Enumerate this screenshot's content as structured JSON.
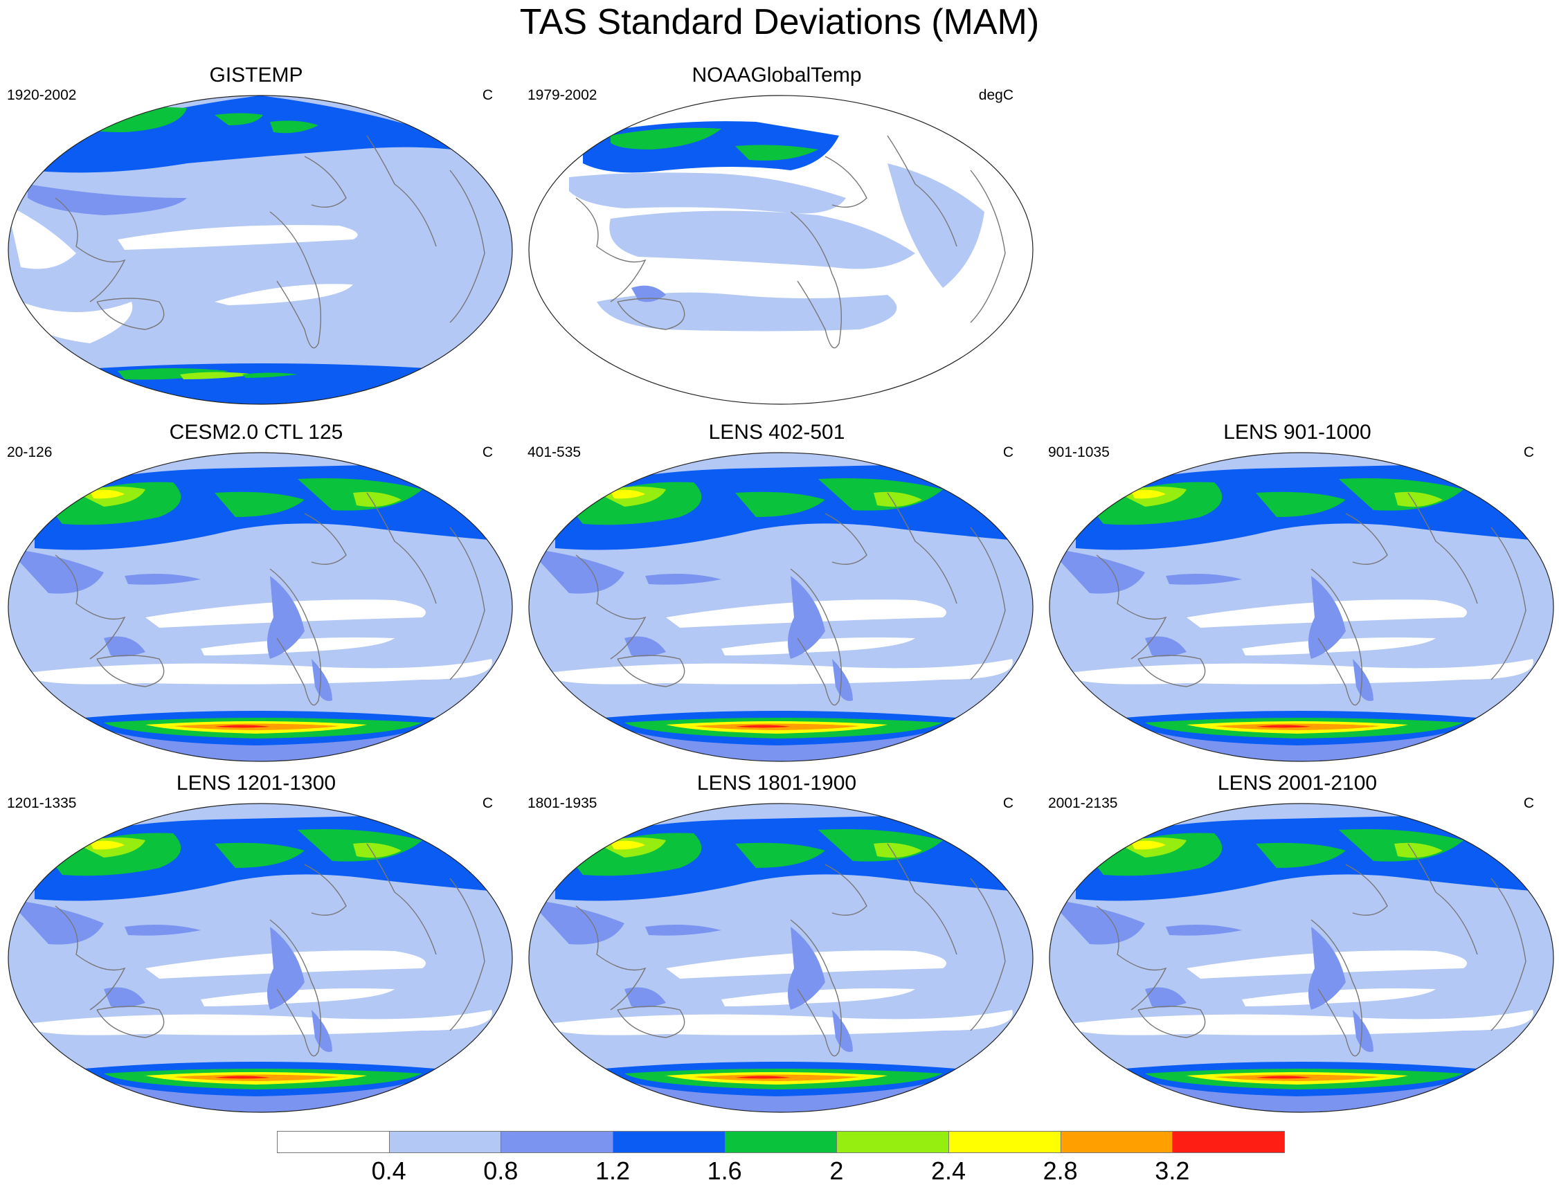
{
  "title": "TAS Standard Deviations (MAM)",
  "panels": [
    {
      "title": "GISTEMP",
      "left": "1920-2002",
      "right": "C",
      "kind": "obs1"
    },
    {
      "title": "NOAAGlobalTemp",
      "left": "1979-2002",
      "right": "degC",
      "kind": "obs2"
    },
    {
      "title": "CESM2.0 CTL 125",
      "left": "20-126",
      "right": "C",
      "kind": "model"
    },
    {
      "title": "LENS 402-501",
      "left": "401-535",
      "right": "C",
      "kind": "model"
    },
    {
      "title": "LENS 901-1000",
      "left": "901-1035",
      "right": "C",
      "kind": "model"
    },
    {
      "title": "LENS 1201-1300",
      "left": "1201-1335",
      "right": "C",
      "kind": "model"
    },
    {
      "title": "LENS 1801-1900",
      "left": "1801-1935",
      "right": "C",
      "kind": "model"
    },
    {
      "title": "LENS 2001-2100",
      "left": "2001-2135",
      "right": "C",
      "kind": "model"
    }
  ],
  "colorbar": {
    "colors": [
      "#ffffff",
      "#b4c8f5",
      "#7a94f0",
      "#0a5cf2",
      "#0ac23c",
      "#96ee10",
      "#ffff00",
      "#ffa000",
      "#ff1e14"
    ],
    "labels": [
      "0.4",
      "0.8",
      "1.2",
      "1.6",
      "2",
      "2.4",
      "2.8",
      "3.2"
    ]
  }
}
